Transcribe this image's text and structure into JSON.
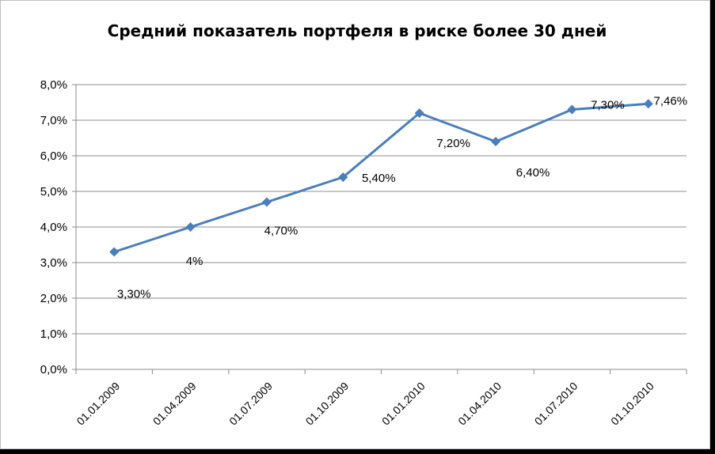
{
  "chart_data": {
    "type": "line",
    "title": "Средний показатель портфеля в риске более 30 дней",
    "xlabel": "",
    "ylabel": "",
    "categories": [
      "01.01.2009",
      "01.04.2009",
      "01.07.2009",
      "01.10.2009",
      "01.01.2010",
      "01.04.2010",
      "01.07.2010",
      "01.10.2010"
    ],
    "series": [
      {
        "values": [
          3.3,
          4.0,
          4.7,
          5.4,
          7.2,
          6.4,
          7.3,
          7.46
        ],
        "data_labels": [
          "3,30%",
          "4%",
          "4,70%",
          "5,40%",
          "7,20%",
          "6,40%",
          "7,30%",
          "7,46%"
        ],
        "color": "#4a7ebb"
      }
    ],
    "yticks": [
      "0,0%",
      "1,0%",
      "2,0%",
      "3,0%",
      "4,0%",
      "5,0%",
      "6,0%",
      "7,0%",
      "8,0%"
    ],
    "ylim": [
      0,
      8
    ],
    "grid": true,
    "legend": "none"
  }
}
